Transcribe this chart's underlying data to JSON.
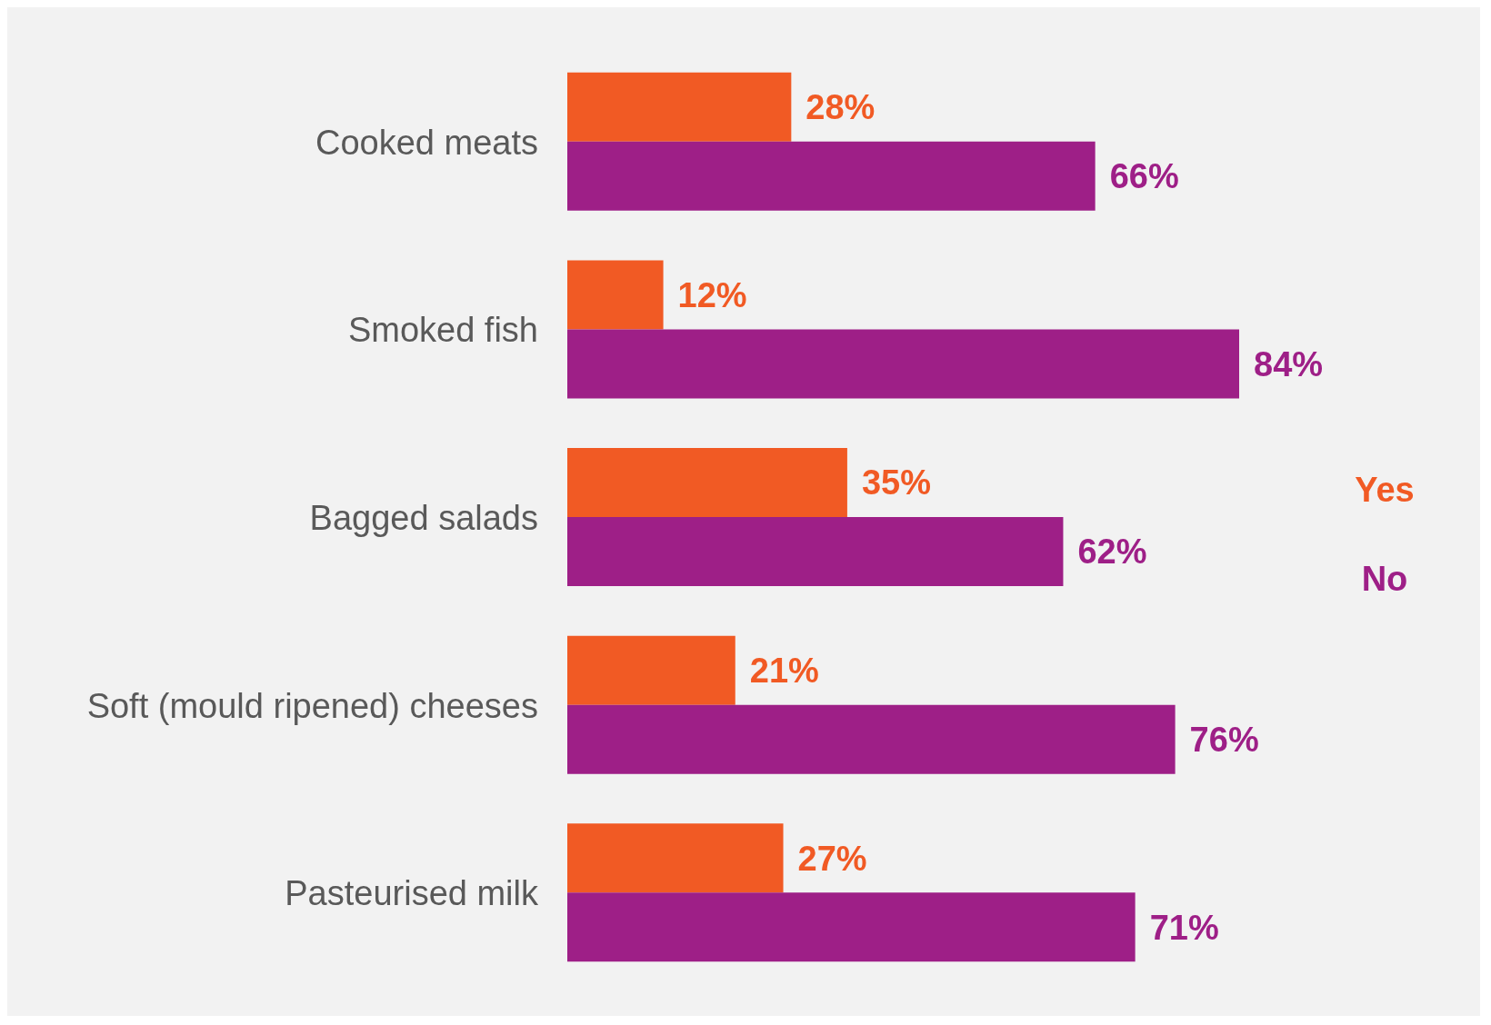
{
  "chart_data": {
    "type": "bar",
    "orientation": "horizontal",
    "categories": [
      "Cooked meats",
      "Smoked fish",
      "Bagged salads",
      "Soft (mould ripened) cheeses",
      "Pasteurised milk"
    ],
    "series": [
      {
        "name": "Yes",
        "color": "#f15a24",
        "values": [
          28,
          12,
          35,
          21,
          27
        ],
        "value_labels": [
          "28%",
          "12%",
          "35%",
          "21%",
          "27%"
        ]
      },
      {
        "name": "No",
        "color": "#9e1f87",
        "values": [
          66,
          84,
          62,
          76,
          71
        ],
        "value_labels": [
          "66%",
          "84%",
          "62%",
          "76%",
          "71%"
        ]
      }
    ],
    "legend": "right",
    "grid": false
  }
}
